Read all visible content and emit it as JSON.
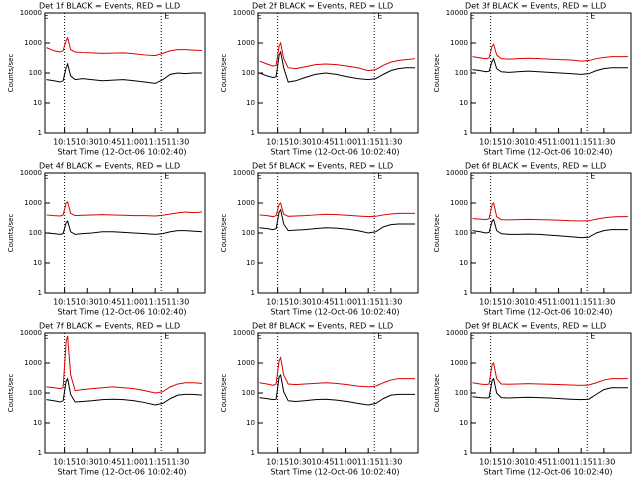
{
  "chart_data": [
    {
      "type": "line",
      "title": "Det 1f BLACK = Events, RED = LLD",
      "ylabel": "Counts/sec",
      "xlabel": "Start Time (12-Oct-06 10:02:40)",
      "log": true,
      "xlim": [
        "10:02",
        "11:48"
      ],
      "xticks": [
        "10:15",
        "10:30",
        "10:45",
        "11:00",
        "11:15",
        "11:30"
      ],
      "ylim": [
        1,
        10000
      ],
      "yticks": [
        1,
        10,
        100,
        1000,
        10000
      ],
      "vlines": [
        "10:15",
        "11:19"
      ],
      "annotations": [
        "E",
        "E"
      ],
      "x": [
        "10:03",
        "10:08",
        "10:12",
        "10:14",
        "10:16",
        "10:17",
        "10:19",
        "10:22",
        "10:27",
        "10:33",
        "10:40",
        "10:47",
        "10:54",
        "11:01",
        "11:08",
        "11:15",
        "11:20",
        "11:25",
        "11:30",
        "11:35",
        "11:40",
        "11:46"
      ],
      "series": [
        {
          "color": "#dd0000",
          "values": [
            700,
            550,
            500,
            550,
            1200,
            1500,
            600,
            500,
            480,
            470,
            450,
            460,
            470,
            440,
            400,
            380,
            450,
            550,
            600,
            600,
            580,
            560
          ]
        },
        {
          "color": "#000000",
          "values": [
            60,
            55,
            50,
            55,
            150,
            200,
            80,
            60,
            65,
            60,
            55,
            58,
            60,
            55,
            50,
            45,
            60,
            90,
            100,
            95,
            100,
            100
          ]
        }
      ]
    },
    {
      "type": "line",
      "title": "Det 2f BLACK = Events, RED = LLD",
      "ylabel": "Counts/sec",
      "xlabel": "Start Time (12-Oct-06 10:02:40)",
      "log": true,
      "xlim": [
        "10:02",
        "11:48"
      ],
      "xticks": [
        "10:15",
        "10:30",
        "10:45",
        "11:00",
        "11:15",
        "11:30"
      ],
      "ylim": [
        1,
        10000
      ],
      "yticks": [
        1,
        10,
        100,
        1000,
        10000
      ],
      "vlines": [
        "10:15",
        "11:19"
      ],
      "annotations": [
        "E",
        "E"
      ],
      "x": [
        "10:03",
        "10:08",
        "10:12",
        "10:14",
        "10:16",
        "10:17",
        "10:19",
        "10:22",
        "10:27",
        "10:33",
        "10:40",
        "10:47",
        "10:54",
        "11:01",
        "11:08",
        "11:15",
        "11:20",
        "11:25",
        "11:30",
        "11:35",
        "11:40",
        "11:46"
      ],
      "series": [
        {
          "color": "#dd0000",
          "values": [
            250,
            200,
            170,
            180,
            800,
            1000,
            300,
            150,
            140,
            160,
            190,
            200,
            190,
            170,
            150,
            120,
            130,
            180,
            230,
            260,
            280,
            300
          ]
        },
        {
          "color": "#000000",
          "values": [
            100,
            80,
            70,
            75,
            400,
            500,
            150,
            50,
            55,
            70,
            90,
            100,
            90,
            75,
            65,
            60,
            65,
            90,
            120,
            140,
            150,
            150
          ]
        }
      ]
    },
    {
      "type": "line",
      "title": "Det 3f BLACK = Events, RED = LLD",
      "ylabel": "Counts/sec",
      "xlabel": "Start Time (12-Oct-06 10:02:40)",
      "log": true,
      "xlim": [
        "10:02",
        "11:48"
      ],
      "xticks": [
        "10:15",
        "10:30",
        "10:45",
        "11:00",
        "11:15",
        "11:30"
      ],
      "ylim": [
        1,
        10000
      ],
      "yticks": [
        1,
        10,
        100,
        1000,
        10000
      ],
      "vlines": [
        "10:15",
        "11:19"
      ],
      "annotations": [
        "E",
        "E"
      ],
      "x": [
        "10:03",
        "10:08",
        "10:12",
        "10:14",
        "10:16",
        "10:17",
        "10:19",
        "10:22",
        "10:27",
        "10:33",
        "10:40",
        "10:47",
        "10:54",
        "11:01",
        "11:08",
        "11:15",
        "11:20",
        "11:25",
        "11:30",
        "11:35",
        "11:40",
        "11:46"
      ],
      "series": [
        {
          "color": "#dd0000",
          "values": [
            350,
            320,
            300,
            320,
            800,
            900,
            400,
            300,
            290,
            300,
            310,
            300,
            290,
            280,
            270,
            250,
            260,
            300,
            330,
            350,
            350,
            350
          ]
        },
        {
          "color": "#000000",
          "values": [
            130,
            120,
            110,
            115,
            250,
            300,
            140,
            110,
            105,
            110,
            115,
            110,
            105,
            100,
            95,
            90,
            95,
            120,
            140,
            150,
            150,
            150
          ]
        }
      ]
    },
    {
      "type": "line",
      "title": "Det 4f BLACK = Events, RED = LLD",
      "ylabel": "Counts/sec",
      "xlabel": "Start Time (12-Oct-06 10:02:40)",
      "log": true,
      "xlim": [
        "10:02",
        "11:48"
      ],
      "xticks": [
        "10:15",
        "10:30",
        "10:45",
        "11:00",
        "11:15",
        "11:30"
      ],
      "ylim": [
        1,
        10000
      ],
      "yticks": [
        1,
        10,
        100,
        1000,
        10000
      ],
      "vlines": [
        "10:15",
        "11:19"
      ],
      "annotations": [
        "E",
        "E"
      ],
      "x": [
        "10:03",
        "10:08",
        "10:12",
        "10:14",
        "10:16",
        "10:17",
        "10:19",
        "10:22",
        "10:27",
        "10:33",
        "10:40",
        "10:47",
        "10:54",
        "11:01",
        "11:08",
        "11:15",
        "11:20",
        "11:25",
        "11:30",
        "11:35",
        "11:40",
        "11:46"
      ],
      "series": [
        {
          "color": "#dd0000",
          "values": [
            400,
            380,
            370,
            400,
            1000,
            1100,
            450,
            380,
            390,
            400,
            410,
            400,
            390,
            380,
            380,
            370,
            390,
            430,
            470,
            500,
            480,
            500
          ]
        },
        {
          "color": "#000000",
          "values": [
            100,
            95,
            90,
            95,
            220,
            250,
            110,
            90,
            95,
            100,
            110,
            110,
            105,
            100,
            95,
            90,
            95,
            110,
            120,
            120,
            115,
            110
          ]
        }
      ]
    },
    {
      "type": "line",
      "title": "Det 5f BLACK = Events, RED = LLD",
      "ylabel": "Counts/sec",
      "xlabel": "Start Time (12-Oct-06 10:02:40)",
      "log": true,
      "xlim": [
        "10:02",
        "11:48"
      ],
      "xticks": [
        "10:15",
        "10:30",
        "10:45",
        "11:00",
        "11:15",
        "11:30"
      ],
      "ylim": [
        1,
        10000
      ],
      "yticks": [
        1,
        10,
        100,
        1000,
        10000
      ],
      "vlines": [
        "10:15",
        "11:19"
      ],
      "annotations": [
        "E",
        "E"
      ],
      "x": [
        "10:03",
        "10:08",
        "10:12",
        "10:14",
        "10:16",
        "10:17",
        "10:19",
        "10:22",
        "10:27",
        "10:33",
        "10:40",
        "10:47",
        "10:54",
        "11:01",
        "11:08",
        "11:15",
        "11:20",
        "11:25",
        "11:30",
        "11:35",
        "11:40",
        "11:46"
      ],
      "series": [
        {
          "color": "#dd0000",
          "values": [
            400,
            380,
            350,
            380,
            900,
            1000,
            420,
            360,
            370,
            380,
            400,
            420,
            410,
            390,
            370,
            350,
            360,
            400,
            430,
            450,
            450,
            450
          ]
        },
        {
          "color": "#000000",
          "values": [
            150,
            140,
            130,
            140,
            500,
            600,
            200,
            120,
            125,
            130,
            140,
            150,
            145,
            135,
            120,
            100,
            110,
            160,
            190,
            200,
            200,
            200
          ]
        }
      ]
    },
    {
      "type": "line",
      "title": "Det 6f BLACK = Events, RED = LLD",
      "ylabel": "Counts/sec",
      "xlabel": "Start Time (12-Oct-06 10:02:40)",
      "log": true,
      "xlim": [
        "10:02",
        "11:48"
      ],
      "xticks": [
        "10:15",
        "10:30",
        "10:45",
        "11:00",
        "11:15",
        "11:30"
      ],
      "ylim": [
        1,
        10000
      ],
      "yticks": [
        1,
        10,
        100,
        1000,
        10000
      ],
      "vlines": [
        "10:15",
        "11:19"
      ],
      "annotations": [
        "E",
        "E"
      ],
      "x": [
        "10:03",
        "10:08",
        "10:12",
        "10:14",
        "10:16",
        "10:17",
        "10:19",
        "10:22",
        "10:27",
        "10:33",
        "10:40",
        "10:47",
        "10:54",
        "11:01",
        "11:08",
        "11:15",
        "11:20",
        "11:25",
        "11:30",
        "11:35",
        "11:40",
        "11:46"
      ],
      "series": [
        {
          "color": "#dd0000",
          "values": [
            300,
            290,
            280,
            300,
            900,
            1000,
            350,
            280,
            275,
            280,
            285,
            280,
            275,
            265,
            255,
            250,
            255,
            290,
            320,
            340,
            350,
            350
          ]
        },
        {
          "color": "#000000",
          "values": [
            120,
            110,
            100,
            105,
            250,
            280,
            120,
            95,
            90,
            90,
            92,
            90,
            85,
            80,
            75,
            70,
            72,
            100,
            120,
            130,
            130,
            130
          ]
        }
      ]
    },
    {
      "type": "line",
      "title": "Det 7f BLACK = Events, RED = LLD",
      "ylabel": "Counts/sec",
      "xlabel": "Start Time (12-Oct-06 10:02:40)",
      "log": true,
      "xlim": [
        "10:02",
        "11:48"
      ],
      "xticks": [
        "10:15",
        "10:30",
        "10:45",
        "11:00",
        "11:15",
        "11:30"
      ],
      "ylim": [
        1,
        10000
      ],
      "yticks": [
        1,
        10,
        100,
        1000,
        10000
      ],
      "vlines": [
        "10:15",
        "11:19"
      ],
      "annotations": [
        "E",
        "E"
      ],
      "x": [
        "10:03",
        "10:08",
        "10:12",
        "10:14",
        "10:16",
        "10:17",
        "10:19",
        "10:22",
        "10:27",
        "10:33",
        "10:40",
        "10:47",
        "10:54",
        "11:01",
        "11:08",
        "11:15",
        "11:20",
        "11:25",
        "11:30",
        "11:35",
        "11:40",
        "11:46"
      ],
      "series": [
        {
          "color": "#dd0000",
          "values": [
            160,
            150,
            140,
            150,
            5000,
            8000,
            400,
            120,
            130,
            140,
            150,
            160,
            150,
            140,
            120,
            100,
            110,
            160,
            200,
            220,
            220,
            210
          ]
        },
        {
          "color": "#000000",
          "values": [
            60,
            55,
            50,
            55,
            250,
            300,
            90,
            50,
            52,
            55,
            60,
            62,
            60,
            55,
            48,
            40,
            45,
            65,
            85,
            90,
            90,
            85
          ]
        }
      ]
    },
    {
      "type": "line",
      "title": "Det 8f BLACK = Events, RED = LLD",
      "ylabel": "Counts/sec",
      "xlabel": "Start Time (12-Oct-06 10:02:40)",
      "log": true,
      "xlim": [
        "10:02",
        "11:48"
      ],
      "xticks": [
        "10:15",
        "10:30",
        "10:45",
        "11:00",
        "11:15",
        "11:30"
      ],
      "ylim": [
        1,
        10000
      ],
      "yticks": [
        1,
        10,
        100,
        1000,
        10000
      ],
      "vlines": [
        "10:15",
        "11:19"
      ],
      "annotations": [
        "E",
        "E"
      ],
      "x": [
        "10:03",
        "10:08",
        "10:12",
        "10:14",
        "10:16",
        "10:17",
        "10:19",
        "10:22",
        "10:27",
        "10:33",
        "10:40",
        "10:47",
        "10:54",
        "11:01",
        "11:08",
        "11:15",
        "11:20",
        "11:25",
        "11:30",
        "11:35",
        "11:40",
        "11:46"
      ],
      "series": [
        {
          "color": "#dd0000",
          "values": [
            220,
            200,
            180,
            200,
            1200,
            1500,
            400,
            200,
            190,
            200,
            210,
            220,
            210,
            190,
            170,
            160,
            170,
            220,
            270,
            300,
            300,
            300
          ]
        },
        {
          "color": "#000000",
          "values": [
            70,
            65,
            60,
            62,
            350,
            400,
            110,
            55,
            52,
            55,
            60,
            62,
            58,
            52,
            45,
            40,
            45,
            65,
            85,
            90,
            90,
            90
          ]
        }
      ]
    },
    {
      "type": "line",
      "title": "Det 9f BLACK = Events, RED = LLD",
      "ylabel": "Counts/sec",
      "xlabel": "Start Time (12-Oct-06 10:02:40)",
      "log": true,
      "xlim": [
        "10:02",
        "11:48"
      ],
      "xticks": [
        "10:15",
        "10:30",
        "10:45",
        "11:00",
        "11:15",
        "11:30"
      ],
      "ylim": [
        1,
        10000
      ],
      "yticks": [
        1,
        10,
        100,
        1000,
        10000
      ],
      "vlines": [
        "10:15",
        "11:19"
      ],
      "annotations": [
        "E",
        "E"
      ],
      "x": [
        "10:03",
        "10:08",
        "10:12",
        "10:14",
        "10:16",
        "10:17",
        "10:19",
        "10:22",
        "10:27",
        "10:33",
        "10:40",
        "10:47",
        "10:54",
        "11:01",
        "11:08",
        "11:15",
        "11:20",
        "11:25",
        "11:30",
        "11:35",
        "11:40",
        "11:46"
      ],
      "series": [
        {
          "color": "#dd0000",
          "values": [
            220,
            200,
            190,
            200,
            900,
            1000,
            300,
            200,
            195,
            200,
            205,
            200,
            195,
            190,
            185,
            180,
            185,
            220,
            270,
            300,
            300,
            300
          ]
        },
        {
          "color": "#000000",
          "values": [
            75,
            70,
            68,
            70,
            260,
            300,
            100,
            70,
            68,
            70,
            72,
            70,
            68,
            65,
            62,
            60,
            62,
            90,
            130,
            150,
            150,
            150
          ]
        }
      ]
    }
  ]
}
